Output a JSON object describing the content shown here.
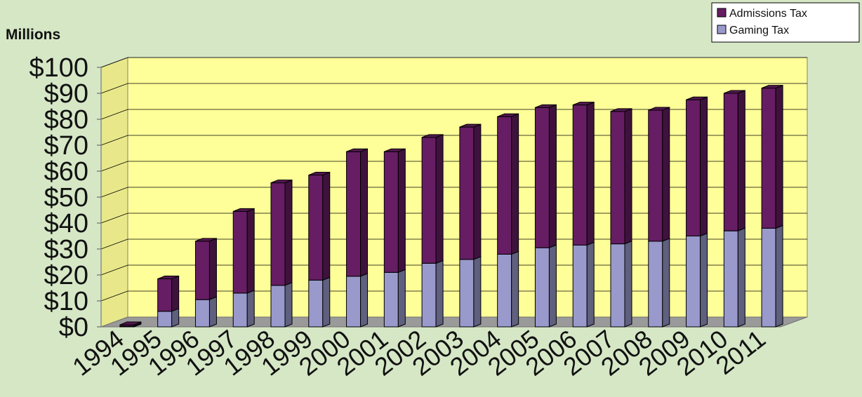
{
  "chart_data": {
    "type": "bar",
    "stacked": true,
    "style": "3d",
    "title": "",
    "ylabel": "Millions",
    "xlabel": "",
    "ylim": [
      0,
      100
    ],
    "y_tick_step": 10,
    "y_tick_labels": [
      "$0",
      "$10",
      "$20",
      "$30",
      "$40",
      "$50",
      "$60",
      "$70",
      "$80",
      "$90",
      "$100"
    ],
    "categories": [
      "1994",
      "1995",
      "1996",
      "1997",
      "1998",
      "1999",
      "2000",
      "2001",
      "2002",
      "2003",
      "2004",
      "2005",
      "2006",
      "2007",
      "2008",
      "2009",
      "2010",
      "2011"
    ],
    "series": [
      {
        "name": "Gaming Tax",
        "color": "#9999cc",
        "values": [
          0.3,
          6,
          10.5,
          13,
          16,
          18,
          19.5,
          21,
          24.5,
          26,
          28,
          30.5,
          31.5,
          32,
          33,
          35,
          37,
          38
        ]
      },
      {
        "name": "Admissions Tax",
        "color": "#661d63",
        "values": [
          0.5,
          12.5,
          22.5,
          31.5,
          39.5,
          40.5,
          48,
          46.5,
          48.5,
          51,
          53,
          54,
          54,
          51,
          50.5,
          52.5,
          53,
          54
        ]
      }
    ],
    "legend_position": "top-right",
    "grid": true,
    "colors": {
      "page_background": "#d6e7c6",
      "plot_background": "#ffff99",
      "floor": "#9a9a9a"
    }
  }
}
